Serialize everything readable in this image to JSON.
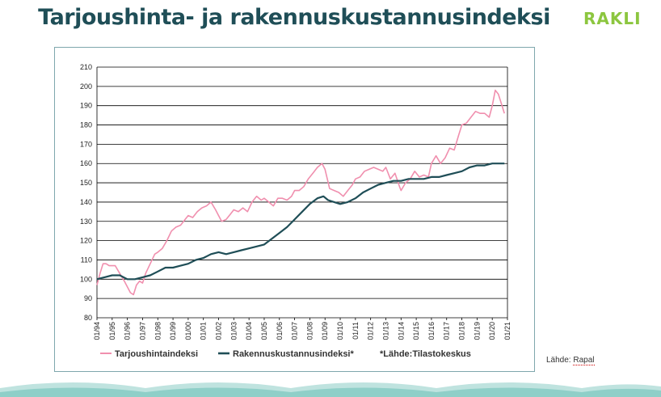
{
  "header": {
    "title": "Tarjoushinta- ja rakennuskustannusindeksi",
    "logo_text": "RAKLI",
    "logo_color": "#8cc63f",
    "title_color": "#1f4e57"
  },
  "source_note": {
    "prefix": "Lähde: ",
    "name": "Rapal"
  },
  "chart_data": {
    "type": "line",
    "title": "",
    "xlabel": "",
    "ylabel": "",
    "ylim": [
      80,
      210
    ],
    "yticks": [
      80,
      90,
      100,
      110,
      120,
      130,
      140,
      150,
      160,
      170,
      180,
      190,
      200,
      210
    ],
    "xlim": [
      1994,
      2021
    ],
    "x_tick_labels": [
      "01/94",
      "01/95",
      "01/96",
      "01/97",
      "01/98",
      "01/99",
      "01/00",
      "01/01",
      "01/02",
      "01/03",
      "01/04",
      "01/05",
      "01/06",
      "01/07",
      "01/08",
      "01/09",
      "01/10",
      "01/11",
      "01/12",
      "01/13",
      "01/14",
      "01/15",
      "01/16",
      "01/17",
      "01/18",
      "01/19",
      "01/20",
      "01/21"
    ],
    "grid": "horizontal",
    "legend_position": "bottom",
    "legend_note": "*Lähde:Tilastokeskus",
    "series": [
      {
        "name": "Tarjoushintaindeksi",
        "color": "#f08fae",
        "x": [
          1994.0,
          1994.2,
          1994.4,
          1994.6,
          1994.8,
          1995.0,
          1995.2,
          1995.5,
          1995.8,
          1996.0,
          1996.2,
          1996.4,
          1996.6,
          1996.8,
          1997.0,
          1997.2,
          1997.5,
          1997.8,
          1998.0,
          1998.3,
          1998.6,
          1998.9,
          1999.2,
          1999.5,
          1999.8,
          2000.0,
          2000.3,
          2000.6,
          2000.9,
          2001.2,
          2001.5,
          2001.8,
          2002.0,
          2002.2,
          2002.5,
          2002.8,
          2003.0,
          2003.3,
          2003.6,
          2003.9,
          2004.2,
          2004.5,
          2004.8,
          2005.0,
          2005.3,
          2005.6,
          2005.9,
          2006.2,
          2006.5,
          2006.8,
          2007.0,
          2007.3,
          2007.6,
          2007.9,
          2008.2,
          2008.5,
          2008.8,
          2009.0,
          2009.3,
          2009.6,
          2009.9,
          2010.2,
          2010.5,
          2010.8,
          2011.0,
          2011.3,
          2011.6,
          2011.9,
          2012.2,
          2012.5,
          2012.8,
          2013.0,
          2013.3,
          2013.6,
          2013.9,
          2014.0,
          2014.3,
          2014.6,
          2014.9,
          2015.2,
          2015.5,
          2015.8,
          2016.0,
          2016.3,
          2016.6,
          2016.9,
          2017.2,
          2017.5,
          2017.8,
          2018.0,
          2018.3,
          2018.6,
          2018.9,
          2019.2,
          2019.5,
          2019.8,
          2020.0,
          2020.2,
          2020.4,
          2020.6,
          2020.8
        ],
        "values": [
          97,
          103,
          108,
          108,
          107,
          107,
          107,
          103,
          99,
          96,
          93,
          92,
          97,
          99,
          98,
          103,
          108,
          113,
          114,
          116,
          120,
          125,
          127,
          128,
          131,
          133,
          132,
          135,
          137,
          138,
          140,
          136,
          133,
          130,
          131,
          134,
          136,
          135,
          137,
          135,
          140,
          143,
          141,
          142,
          140,
          138,
          142,
          142,
          141,
          143,
          146,
          146,
          148,
          152,
          155,
          158,
          160,
          157,
          147,
          146,
          145,
          143,
          146,
          149,
          152,
          153,
          156,
          157,
          158,
          157,
          156,
          158,
          152,
          155,
          148,
          146,
          150,
          152,
          156,
          153,
          154,
          153,
          160,
          164,
          160,
          163,
          168,
          167,
          175,
          180,
          181,
          184,
          187,
          186,
          186,
          184,
          190,
          198,
          196,
          191,
          186
        ]
      },
      {
        "name": "Rakennuskustannusindeksi*",
        "color": "#1f4e57",
        "x": [
          1994.0,
          1994.5,
          1995.0,
          1995.5,
          1996.0,
          1996.5,
          1997.0,
          1997.5,
          1998.0,
          1998.5,
          1999.0,
          1999.5,
          2000.0,
          2000.5,
          2001.0,
          2001.5,
          2002.0,
          2002.5,
          2003.0,
          2003.5,
          2004.0,
          2004.5,
          2005.0,
          2005.5,
          2006.0,
          2006.5,
          2007.0,
          2007.5,
          2008.0,
          2008.5,
          2008.9,
          2009.2,
          2009.6,
          2010.0,
          2010.5,
          2011.0,
          2011.5,
          2012.0,
          2012.5,
          2013.0,
          2013.5,
          2014.0,
          2014.5,
          2015.0,
          2015.5,
          2016.0,
          2016.5,
          2017.0,
          2017.5,
          2018.0,
          2018.5,
          2019.0,
          2019.5,
          2020.0,
          2020.5,
          2020.8
        ],
        "values": [
          100,
          101,
          102,
          102,
          100,
          100,
          101,
          102,
          104,
          106,
          106,
          107,
          108,
          110,
          111,
          113,
          114,
          113,
          114,
          115,
          116,
          117,
          118,
          121,
          124,
          127,
          131,
          135,
          139,
          142,
          143,
          141,
          140,
          139,
          140,
          142,
          145,
          147,
          149,
          150,
          151,
          151,
          152,
          152,
          152,
          153,
          153,
          154,
          155,
          156,
          158,
          159,
          159,
          160,
          160,
          160
        ]
      }
    ]
  }
}
